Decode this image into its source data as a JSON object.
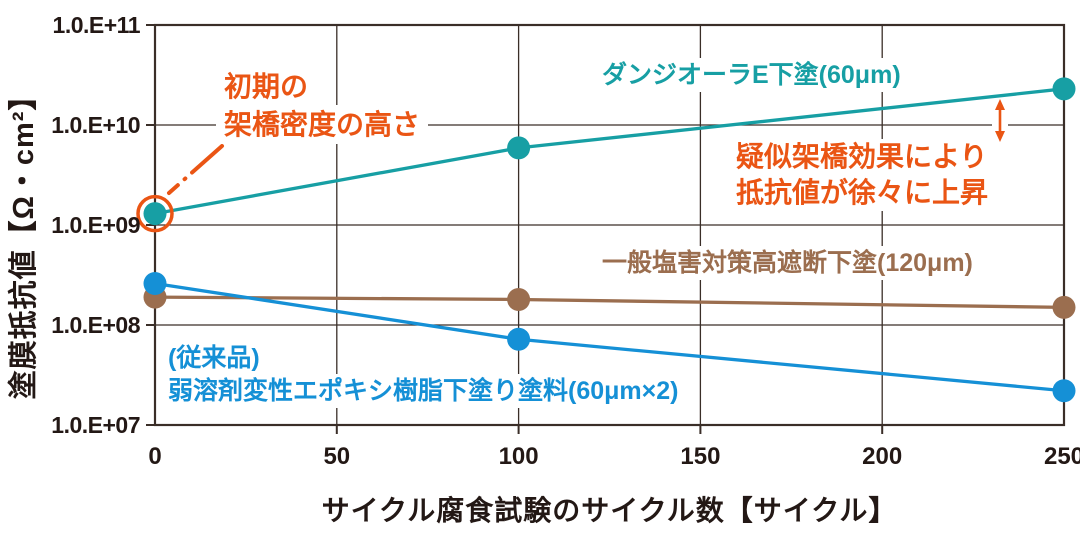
{
  "colors": {
    "axis_text": "#231815",
    "grid": "#3a2e28",
    "orange": "#ea5514",
    "teal": "#179fa4",
    "brown": "#9b6e4f",
    "blue": "#1590d6",
    "background": "#ffffff"
  },
  "chart_data": {
    "type": "line",
    "title": "",
    "xlabel": "サイクル腐食試験のサイクル数【サイクル】",
    "ylabel": "塗膜抵抗値【Ω・cm²】",
    "y_scale": "log10",
    "xlim": [
      0,
      250
    ],
    "ylim_log": [
      7,
      11
    ],
    "x_ticks": [
      0,
      50,
      100,
      150,
      200,
      250
    ],
    "y_tick_decades": [
      11,
      10,
      9,
      8,
      7
    ],
    "y_tick_labels": [
      "1.0.E+11",
      "1.0.E+10",
      "1.0.E+09",
      "1.0.E+08",
      "1.0.E+07"
    ],
    "grid": true,
    "legend_position": "inline-labels",
    "x": [
      0,
      100,
      250
    ],
    "series": [
      {
        "name": "ダンジオーラE下塗(60μm)",
        "color_key": "teal",
        "values": [
          1300000000.0,
          5900000000.0,
          23000000000.0
        ]
      },
      {
        "name": "一般塩害対策高遮断下塗(120μm)",
        "color_key": "brown",
        "values": [
          190000000.0,
          180000000.0,
          150000000.0
        ]
      },
      {
        "name": "(従来品) 弱溶剤変性エポキシ樹脂下塗り塗料(60μm×2)",
        "name_line1": "(従来品)",
        "name_line2": "弱溶剤変性エポキシ樹脂下塗り塗料(60μm×2)",
        "color_key": "blue",
        "values": [
          260000000.0,
          72000000.0,
          22000000.0
        ]
      }
    ],
    "annotations": {
      "initial_crosslink": {
        "line1": "初期の",
        "line2": "架橋密度の高さ",
        "target": "first point of teal series, circled"
      },
      "pseudo_crosslink": {
        "line1": "疑似架橋効果により",
        "line2": "抵抗値が徐々に上昇",
        "target": "last point of teal series, vertical arrow"
      }
    }
  }
}
